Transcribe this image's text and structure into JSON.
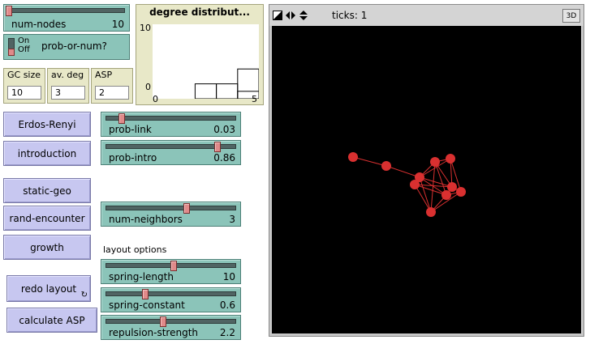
{
  "sliders": {
    "num_nodes": {
      "label": "num-nodes",
      "value": "10",
      "fraction": 0.0
    },
    "prob_link": {
      "label": "prob-link",
      "value": "0.03",
      "fraction": 0.12
    },
    "prob_intro": {
      "label": "prob-intro",
      "value": "0.86",
      "fraction": 0.86
    },
    "num_neighbors": {
      "label": "num-neighbors",
      "value": "3",
      "fraction": 0.62
    },
    "spring_length": {
      "label": "spring-length",
      "value": "10",
      "fraction": 0.52
    },
    "spring_constant": {
      "label": "spring-constant",
      "value": "0.6",
      "fraction": 0.3
    },
    "repulsion_strength": {
      "label": "repulsion-strength",
      "value": "2.2",
      "fraction": 0.44
    }
  },
  "switch": {
    "on": "On",
    "off": "Off",
    "label": "prob-or-num?",
    "state": "off"
  },
  "monitors": {
    "gc_size": {
      "label": "GC size",
      "value": "10"
    },
    "av_deg": {
      "label": "av. deg",
      "value": "3"
    },
    "asp": {
      "label": "ASP",
      "value": "2"
    }
  },
  "buttons": {
    "erdos_renyi": "Erdos-Renyi",
    "introduction": "introduction",
    "static_geo": "static-geo",
    "rand_encounter": "rand-encounter",
    "growth": "growth",
    "redo_layout": "redo layout",
    "calculate_asp": "calculate ASP"
  },
  "layout_options_label": "layout options",
  "plot": {
    "title": "degree distribut...",
    "y_max_label": "10",
    "y_min_label": "0",
    "x_min_label": "0",
    "x_max_label": "5"
  },
  "chart_data": {
    "type": "bar",
    "title": "degree distribut...",
    "xlim": [
      0,
      5
    ],
    "ylim": [
      0,
      10
    ],
    "bins": [
      {
        "x": 0,
        "value": 0
      },
      {
        "x": 1,
        "value": 0
      },
      {
        "x": 2,
        "value": 2
      },
      {
        "x": 3,
        "value": 2
      },
      {
        "x": 4,
        "value": 1
      },
      {
        "x": 5,
        "value": 4
      }
    ]
  },
  "view": {
    "ticks_label": "ticks: 1",
    "three_d_label": "3D"
  },
  "network": {
    "node_color": "#d93030",
    "edge_color": "#d93030",
    "background": "#000000"
  }
}
